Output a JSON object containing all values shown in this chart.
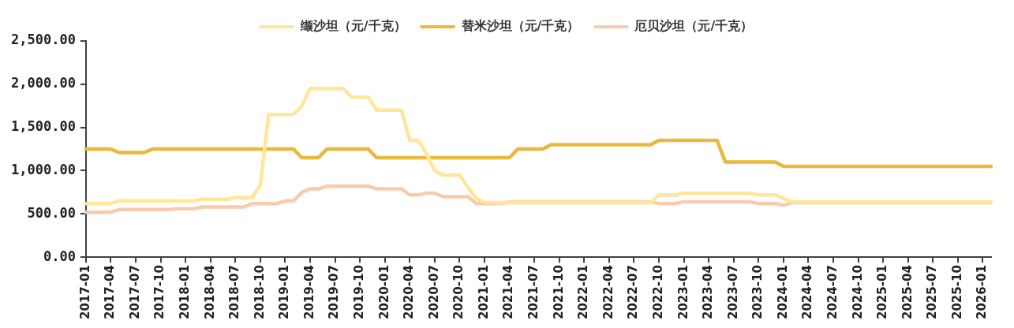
{
  "chart_data": {
    "type": "line",
    "legend": "top",
    "marker": "none",
    "categories": [
      "2017-01",
      null,
      null,
      "2017-04",
      null,
      null,
      "2017-07",
      null,
      null,
      "2017-10",
      null,
      null,
      "2018-01",
      null,
      null,
      "2018-04",
      null,
      null,
      "2018-07",
      null,
      null,
      "2018-10",
      null,
      null,
      "2019-01",
      null,
      null,
      "2019-04",
      null,
      null,
      "2019-07",
      null,
      null,
      "2019-10",
      null,
      null,
      "2020-01",
      null,
      null,
      "2020-04",
      null,
      null,
      "2020-07",
      null,
      null,
      "2020-10",
      null,
      null,
      "2021-01",
      null,
      null,
      "2021-04",
      null,
      null,
      "2021-07",
      null,
      null,
      "2021-10",
      null,
      null,
      "2022-01",
      null,
      null,
      "2022-04",
      null,
      null,
      "2022-07",
      null,
      null,
      "2022-10",
      null,
      null,
      "2023-01",
      null,
      null,
      "2023-04",
      null,
      null,
      "2023-07",
      null,
      null,
      "2023-10",
      null,
      null,
      "2024-01",
      null,
      null,
      "2024-04",
      null,
      null,
      "2024-07",
      null,
      null,
      "2024-10",
      null,
      null,
      "2025-01",
      null,
      null,
      "2025-04",
      null,
      null,
      "2025-07",
      null,
      null,
      "2025-10",
      null,
      null,
      "2026-01",
      null
    ],
    "ylim": [
      0,
      2500
    ],
    "yticks": [
      {
        "value": 0,
        "label": "0.00"
      },
      {
        "value": 500,
        "label": "500.00"
      },
      {
        "value": 1000,
        "label": "1,000.00"
      },
      {
        "value": 1500,
        "label": "1,500.00"
      },
      {
        "value": 2000,
        "label": "2,000.00"
      },
      {
        "value": 2500,
        "label": "2,500.00"
      }
    ],
    "series": [
      {
        "name": "缬沙坦（元/千克）",
        "color": "#ffe699",
        "values": [
          620,
          620,
          620,
          620,
          650,
          650,
          650,
          650,
          650,
          650,
          650,
          650,
          650,
          650,
          670,
          670,
          670,
          670,
          690,
          690,
          690,
          830,
          1650,
          1650,
          1650,
          1650,
          1750,
          1950,
          1950,
          1950,
          1950,
          1950,
          1850,
          1850,
          1850,
          1700,
          1700,
          1700,
          1700,
          1350,
          1350,
          1200,
          1000,
          950,
          950,
          950,
          810,
          680,
          630,
          630,
          630,
          630,
          630,
          630,
          630,
          630,
          630,
          630,
          630,
          630,
          630,
          630,
          630,
          630,
          630,
          630,
          630,
          630,
          630,
          720,
          720,
          720,
          740,
          740,
          740,
          740,
          740,
          740,
          740,
          740,
          740,
          720,
          720,
          720,
          680,
          640,
          640,
          640,
          640,
          640,
          640,
          640,
          640,
          640,
          640,
          640,
          640,
          640,
          640,
          640,
          640,
          640,
          640,
          640,
          640,
          640,
          640,
          640,
          640,
          640
        ]
      },
      {
        "name": "替米沙坦（元/千克）",
        "color": "#e8b93b",
        "values": [
          1250,
          1250,
          1250,
          1250,
          1210,
          1210,
          1210,
          1210,
          1250,
          1250,
          1250,
          1250,
          1250,
          1250,
          1250,
          1250,
          1250,
          1250,
          1250,
          1250,
          1250,
          1250,
          1250,
          1250,
          1250,
          1250,
          1150,
          1150,
          1150,
          1250,
          1250,
          1250,
          1250,
          1250,
          1250,
          1150,
          1150,
          1150,
          1150,
          1150,
          1150,
          1150,
          1150,
          1150,
          1150,
          1150,
          1150,
          1150,
          1150,
          1150,
          1150,
          1150,
          1250,
          1250,
          1250,
          1250,
          1300,
          1300,
          1300,
          1300,
          1300,
          1300,
          1300,
          1300,
          1300,
          1300,
          1300,
          1300,
          1300,
          1350,
          1350,
          1350,
          1350,
          1350,
          1350,
          1350,
          1350,
          1100,
          1100,
          1100,
          1100,
          1100,
          1100,
          1100,
          1050,
          1050,
          1050,
          1050,
          1050,
          1050,
          1050,
          1050,
          1050,
          1050,
          1050,
          1050,
          1050,
          1050,
          1050,
          1050,
          1050,
          1050,
          1050,
          1050,
          1050,
          1050,
          1050,
          1050,
          1050,
          1050
        ]
      },
      {
        "name": "厄贝沙坦（元/千克）",
        "color": "#f8cbad",
        "values": [
          520,
          520,
          520,
          520,
          550,
          550,
          550,
          550,
          550,
          550,
          550,
          560,
          560,
          560,
          580,
          580,
          580,
          580,
          580,
          580,
          620,
          620,
          620,
          620,
          650,
          650,
          750,
          790,
          790,
          820,
          820,
          820,
          820,
          820,
          820,
          790,
          790,
          790,
          790,
          720,
          720,
          740,
          740,
          700,
          700,
          700,
          700,
          620,
          620,
          620,
          620,
          640,
          640,
          640,
          640,
          640,
          640,
          640,
          640,
          640,
          640,
          640,
          640,
          640,
          640,
          640,
          640,
          640,
          640,
          620,
          620,
          620,
          640,
          640,
          640,
          640,
          640,
          640,
          640,
          640,
          640,
          620,
          620,
          620,
          600,
          630,
          630,
          630,
          630,
          630,
          630,
          630,
          630,
          630,
          630,
          630,
          630,
          630,
          630,
          630,
          630,
          630,
          630,
          630,
          630,
          630,
          630,
          630,
          630,
          630
        ]
      }
    ]
  }
}
